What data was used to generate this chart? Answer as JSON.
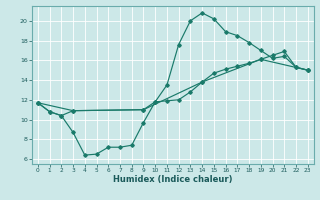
{
  "xlabel": "Humidex (Indice chaleur)",
  "xlim": [
    -0.5,
    23.5
  ],
  "ylim": [
    5.5,
    21.5
  ],
  "yticks": [
    6,
    8,
    10,
    12,
    14,
    16,
    18,
    20
  ],
  "xticks": [
    0,
    1,
    2,
    3,
    4,
    5,
    6,
    7,
    8,
    9,
    10,
    11,
    12,
    13,
    14,
    15,
    16,
    17,
    18,
    19,
    20,
    21,
    22,
    23
  ],
  "bg_color": "#cce8e8",
  "line_color": "#1a7a6a",
  "grid_color": "#b8d8d8",
  "curve1_x": [
    0,
    1,
    2,
    3,
    4,
    5,
    6,
    7,
    8,
    9,
    10,
    11,
    12,
    13,
    14,
    15,
    16,
    17,
    18,
    19,
    20,
    21,
    22,
    23
  ],
  "curve1_y": [
    11.7,
    10.8,
    10.4,
    8.7,
    6.4,
    6.5,
    7.2,
    7.2,
    7.4,
    9.7,
    11.8,
    13.5,
    17.6,
    20.0,
    20.8,
    20.2,
    18.9,
    18.5,
    17.8,
    17.0,
    16.2,
    16.4,
    15.3,
    15.0
  ],
  "curve2_x": [
    0,
    1,
    2,
    3,
    9,
    10,
    11,
    12,
    13,
    14,
    15,
    16,
    17,
    18,
    19,
    20,
    21,
    22,
    23
  ],
  "curve2_y": [
    11.7,
    10.8,
    10.4,
    10.9,
    11.0,
    11.8,
    11.9,
    12.0,
    12.8,
    13.8,
    14.7,
    15.1,
    15.4,
    15.7,
    16.1,
    16.5,
    16.9,
    15.3,
    15.0
  ],
  "curve3_x": [
    0,
    3,
    9,
    14,
    19,
    23
  ],
  "curve3_y": [
    11.7,
    10.9,
    11.0,
    13.8,
    16.1,
    15.0
  ]
}
